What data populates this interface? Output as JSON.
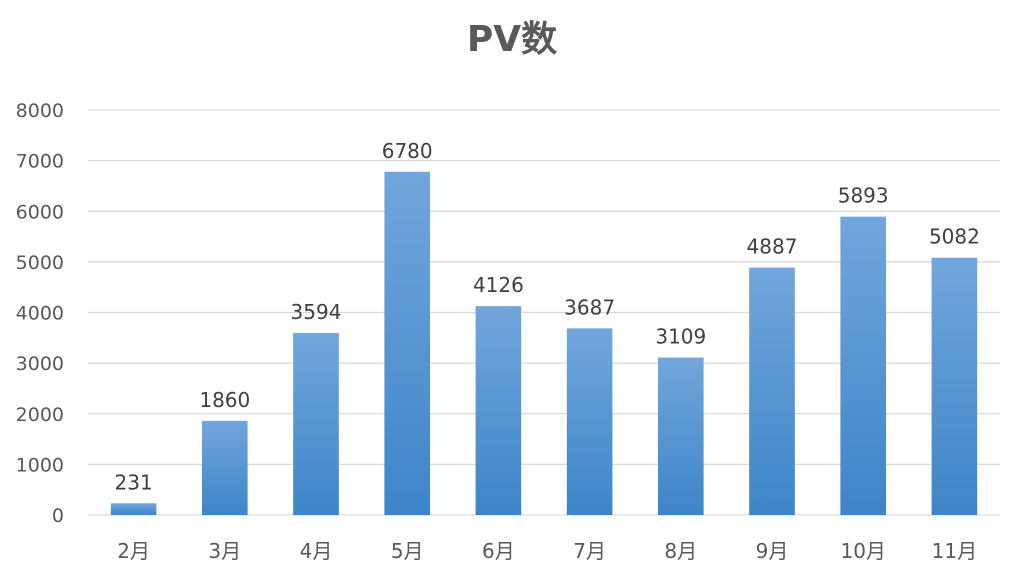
{
  "chart_data": {
    "type": "bar",
    "title": "PV数",
    "categories": [
      "2月",
      "3月",
      "4月",
      "5月",
      "6月",
      "7月",
      "8月",
      "9月",
      "10月",
      "11月"
    ],
    "values": [
      231,
      1860,
      3594,
      6780,
      4126,
      3687,
      3109,
      4887,
      5893,
      5082
    ],
    "ylim": [
      0,
      8000
    ],
    "yticks": [
      0,
      1000,
      2000,
      3000,
      4000,
      5000,
      6000,
      7000,
      8000
    ],
    "grid": true,
    "legend": "none",
    "data_labels": true,
    "colors": {
      "bar_top": "#72a6dc",
      "bar_bottom": "#3d85c8",
      "grid": "#d9d9d9",
      "text": "#595959"
    }
  }
}
